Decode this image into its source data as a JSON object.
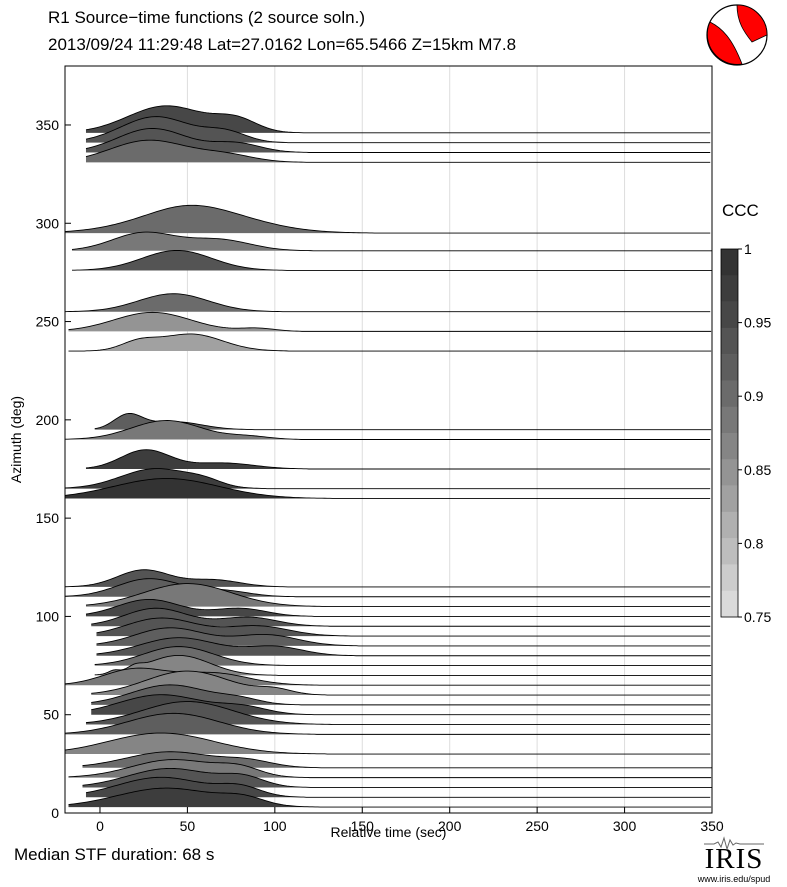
{
  "header": {
    "title": "R1 Source−time functions (2 source soln.)",
    "subtitle": "2013/09/24 11:29:48   Lat=27.0162 Lon=65.5466   Z=15km   M7.8"
  },
  "footer": {
    "text": "Median STF duration: 68 s"
  },
  "logo": {
    "text": "IRIS",
    "url": "www.iris.edu/spud",
    "icon": "iris-seismogram-logo"
  },
  "beachball": {
    "icon": "focal-mechanism-beachball",
    "color": "#ff0000"
  },
  "colorbar": {
    "title": "CCC",
    "ticks": [
      "1",
      "0.95",
      "0.9",
      "0.85",
      "0.8",
      "0.75"
    ],
    "range": [
      0.75,
      1.0
    ],
    "colors": [
      "#333333",
      "#3d3d3d",
      "#474747",
      "#545454",
      "#5e5e5e",
      "#6b6b6b",
      "#787878",
      "#858585",
      "#949494",
      "#a1a1a1",
      "#b0b0b0",
      "#bdbdbd",
      "#cccccc",
      "#dadada"
    ]
  },
  "chart_data": {
    "type": "area",
    "title": "R1 Source−time functions (2 source soln.)",
    "xlabel": "Relative time (sec)",
    "ylabel": "Azimuth (deg)",
    "xlim": [
      -20,
      350
    ],
    "ylim": [
      0,
      380
    ],
    "xticks": [
      "0",
      "50",
      "100",
      "150",
      "200",
      "250",
      "300",
      "350"
    ],
    "yticks": [
      "0",
      "50",
      "100",
      "150",
      "200",
      "250",
      "300",
      "350"
    ],
    "grid": "vertical",
    "series": [
      {
        "azimuth": 346,
        "start": -8,
        "ccc": 0.95,
        "bumps": [
          [
            38,
            22,
            27
          ],
          [
            78,
            12,
            12
          ]
        ]
      },
      {
        "azimuth": 341,
        "start": -8,
        "ccc": 0.93,
        "bumps": [
          [
            32,
            20,
            26
          ],
          [
            72,
            12,
            10
          ]
        ]
      },
      {
        "azimuth": 336,
        "start": -8,
        "ccc": 0.94,
        "bumps": [
          [
            30,
            20,
            24
          ],
          [
            78,
            14,
            9
          ]
        ]
      },
      {
        "azimuth": 331,
        "start": -8,
        "ccc": 0.91,
        "bumps": [
          [
            28,
            22,
            22
          ],
          [
            72,
            16,
            7
          ]
        ]
      },
      {
        "azimuth": 295,
        "start": -20,
        "ccc": 0.9,
        "bumps": [
          [
            55,
            32,
            24
          ],
          [
            48,
            18,
            4
          ]
        ]
      },
      {
        "azimuth": 286,
        "start": -16,
        "ccc": 0.89,
        "bumps": [
          [
            25,
            18,
            18
          ],
          [
            68,
            18,
            11
          ]
        ]
      },
      {
        "azimuth": 276,
        "start": -16,
        "ccc": 0.93,
        "bumps": [
          [
            44,
            20,
            20
          ]
        ]
      },
      {
        "azimuth": 255,
        "start": -20,
        "ccc": 0.91,
        "bumps": [
          [
            42,
            20,
            18
          ]
        ]
      },
      {
        "azimuth": 245,
        "start": -18,
        "ccc": 0.84,
        "bumps": [
          [
            30,
            22,
            19
          ],
          [
            90,
            10,
            3
          ]
        ]
      },
      {
        "azimuth": 235,
        "start": -18,
        "ccc": 0.83,
        "bumps": [
          [
            22,
            10,
            8
          ],
          [
            52,
            18,
            17
          ]
        ]
      },
      {
        "azimuth": 195,
        "start": -3,
        "ccc": 0.92,
        "bumps": [
          [
            16,
            8,
            14
          ],
          [
            42,
            16,
            8
          ]
        ]
      },
      {
        "azimuth": 190,
        "start": -20,
        "ccc": 0.89,
        "bumps": [
          [
            38,
            20,
            19
          ],
          [
            85,
            12,
            3
          ]
        ]
      },
      {
        "azimuth": 175,
        "start": -8,
        "ccc": 0.97,
        "bumps": [
          [
            26,
            14,
            19
          ],
          [
            70,
            18,
            6
          ]
        ]
      },
      {
        "azimuth": 165,
        "start": -20,
        "ccc": 0.98,
        "bumps": [
          [
            32,
            20,
            20
          ],
          [
            60,
            10,
            5
          ]
        ]
      },
      {
        "azimuth": 160,
        "start": -20,
        "ccc": 0.99,
        "bumps": [
          [
            38,
            30,
            20
          ]
        ]
      },
      {
        "azimuth": 115,
        "start": -20,
        "ccc": 0.94,
        "bumps": [
          [
            25,
            15,
            17
          ],
          [
            65,
            15,
            7
          ]
        ]
      },
      {
        "azimuth": 110,
        "start": -20,
        "ccc": 0.92,
        "bumps": [
          [
            28,
            18,
            18
          ],
          [
            70,
            15,
            6
          ]
        ]
      },
      {
        "azimuth": 105,
        "start": -8,
        "ccc": 0.88,
        "bumps": [
          [
            50,
            25,
            23
          ]
        ]
      },
      {
        "azimuth": 100,
        "start": -8,
        "ccc": 0.95,
        "bumps": [
          [
            28,
            18,
            17
          ],
          [
            80,
            15,
            8
          ]
        ]
      },
      {
        "azimuth": 95,
        "start": -5,
        "ccc": 0.94,
        "bumps": [
          [
            32,
            18,
            18
          ],
          [
            85,
            16,
            9
          ]
        ]
      },
      {
        "azimuth": 90,
        "start": -2,
        "ccc": 0.93,
        "bumps": [
          [
            35,
            20,
            18
          ],
          [
            90,
            18,
            10
          ]
        ]
      },
      {
        "azimuth": 85,
        "start": -2,
        "ccc": 0.92,
        "bumps": [
          [
            40,
            20,
            18
          ],
          [
            95,
            18,
            11
          ]
        ]
      },
      {
        "azimuth": 80,
        "start": -2,
        "ccc": 0.94,
        "bumps": [
          [
            45,
            22,
            18
          ],
          [
            100,
            16,
            9
          ]
        ]
      },
      {
        "azimuth": 75,
        "start": -3,
        "ccc": 0.9,
        "bumps": [
          [
            45,
            20,
            19
          ]
        ]
      },
      {
        "azimuth": 70,
        "start": -3,
        "ccc": 0.86,
        "bumps": [
          [
            8,
            3,
            3
          ],
          [
            20,
            4,
            4
          ],
          [
            45,
            18,
            20
          ]
        ]
      },
      {
        "azimuth": 65,
        "start": -20,
        "ccc": 0.88,
        "bumps": [
          [
            20,
            18,
            16
          ],
          [
            65,
            20,
            12
          ]
        ]
      },
      {
        "azimuth": 60,
        "start": -5,
        "ccc": 0.86,
        "bumps": [
          [
            50,
            24,
            24
          ],
          [
            100,
            10,
            5
          ]
        ]
      },
      {
        "azimuth": 55,
        "start": -5,
        "ccc": 0.92,
        "bumps": [
          [
            40,
            22,
            20
          ],
          [
            80,
            12,
            5
          ]
        ]
      },
      {
        "azimuth": 50,
        "start": -5,
        "ccc": 0.96,
        "bumps": [
          [
            35,
            24,
            20
          ],
          [
            82,
            14,
            7
          ]
        ]
      },
      {
        "azimuth": 45,
        "start": -8,
        "ccc": 0.94,
        "bumps": [
          [
            50,
            26,
            23
          ]
        ]
      },
      {
        "azimuth": 40,
        "start": -20,
        "ccc": 0.92,
        "bumps": [
          [
            42,
            26,
            21
          ]
        ]
      },
      {
        "azimuth": 30,
        "start": -20,
        "ccc": 0.86,
        "bumps": [
          [
            35,
            30,
            21
          ]
        ]
      },
      {
        "azimuth": 23,
        "start": -10,
        "ccc": 0.91,
        "bumps": [
          [
            40,
            25,
            16
          ],
          [
            85,
            14,
            6
          ]
        ]
      },
      {
        "azimuth": 18,
        "start": -18,
        "ccc": 0.88,
        "bumps": [
          [
            42,
            24,
            18
          ],
          [
            80,
            12,
            8
          ]
        ]
      },
      {
        "azimuth": 13,
        "start": -10,
        "ccc": 0.94,
        "bumps": [
          [
            40,
            24,
            19
          ],
          [
            82,
            12,
            9
          ]
        ]
      },
      {
        "azimuth": 8,
        "start": -8,
        "ccc": 0.95,
        "bumps": [
          [
            35,
            25,
            20
          ],
          [
            80,
            12,
            9
          ]
        ]
      },
      {
        "azimuth": 3,
        "start": -18,
        "ccc": 0.97,
        "bumps": [
          [
            38,
            28,
            19
          ],
          [
            82,
            12,
            7
          ]
        ]
      }
    ]
  }
}
